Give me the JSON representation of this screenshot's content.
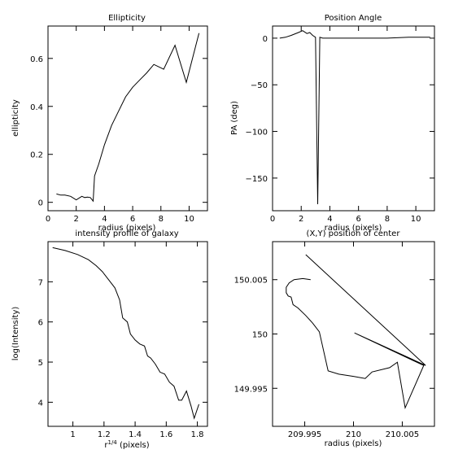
{
  "chart_data": [
    {
      "id": "ellipticity",
      "type": "line",
      "title": "Ellipticity",
      "xlabel": "radius (pixels)",
      "ylabel": "ellipticity",
      "xlim": [
        0,
        11.3
      ],
      "ylim": [
        -0.035,
        0.735
      ],
      "xticks": [
        0,
        2,
        4,
        6,
        8,
        10
      ],
      "xtick_labels": [
        "0",
        "2",
        "4",
        "6",
        "8",
        "10"
      ],
      "yticks": [
        0,
        0.2,
        0.4,
        0.6
      ],
      "ytick_labels": [
        "0",
        "0.2",
        "0.4",
        "0.6"
      ],
      "grid": false,
      "series": [
        {
          "x": [
            0.6,
            0.9,
            1.2,
            1.6,
            2.0,
            2.4,
            2.6,
            2.8,
            3.0,
            3.2,
            3.3,
            3.6,
            4.0,
            4.5,
            5.0,
            5.5,
            6.0,
            6.5,
            7.0,
            7.5,
            8.2,
            9.0,
            9.8,
            10.7
          ],
          "y": [
            0.035,
            0.03,
            0.03,
            0.025,
            0.01,
            0.025,
            0.02,
            0.022,
            0.02,
            0.005,
            0.11,
            0.16,
            0.24,
            0.32,
            0.38,
            0.44,
            0.48,
            0.51,
            0.54,
            0.575,
            0.555,
            0.655,
            0.5,
            0.705
          ]
        }
      ]
    },
    {
      "id": "position-angle",
      "type": "line",
      "title": "Position Angle",
      "xlabel": "radius (pixels)",
      "ylabel": "PA (deg)",
      "xlim": [
        0,
        11.3
      ],
      "ylim": [
        -185,
        13
      ],
      "xticks": [
        0,
        2,
        4,
        6,
        8,
        10
      ],
      "xtick_labels": [
        "0",
        "2",
        "4",
        "6",
        "8",
        "10"
      ],
      "yticks": [
        0,
        -50,
        -100,
        -150
      ],
      "ytick_labels": [
        "0",
        "−50",
        "−100",
        "−150"
      ],
      "grid": false,
      "series": [
        {
          "x": [
            0.5,
            0.9,
            1.3,
            1.8,
            2.1,
            2.4,
            2.6,
            2.8,
            3.0,
            3.15,
            3.3,
            3.5,
            4.5,
            6,
            8,
            9.5,
            11
          ],
          "y": [
            0,
            1,
            3,
            6,
            8,
            5,
            6,
            3,
            1,
            -178,
            1,
            0,
            0,
            0,
            0,
            1,
            1
          ]
        }
      ]
    },
    {
      "id": "intensity-profile",
      "type": "line",
      "title": "intensity profile of galaxy",
      "xlabel": "r^{1/4} (pixels)",
      "ylabel": "log(Intensity)",
      "xlim": [
        0.84,
        1.865
      ],
      "ylim": [
        3.4,
        8.0
      ],
      "xticks": [
        1,
        1.2,
        1.4,
        1.6,
        1.8
      ],
      "xtick_labels": [
        "1",
        "1.2",
        "1.4",
        "1.6",
        "1.8"
      ],
      "yticks": [
        4,
        5,
        6,
        7
      ],
      "ytick_labels": [
        "4",
        "5",
        "6",
        "7"
      ],
      "grid": false,
      "series": [
        {
          "x": [
            0.87,
            0.95,
            1.03,
            1.1,
            1.15,
            1.19,
            1.23,
            1.27,
            1.3,
            1.32,
            1.35,
            1.37,
            1.4,
            1.43,
            1.46,
            1.48,
            1.5,
            1.53,
            1.56,
            1.59,
            1.62,
            1.65,
            1.68,
            1.7,
            1.73,
            1.76,
            1.78,
            1.81
          ],
          "y": [
            7.85,
            7.78,
            7.68,
            7.55,
            7.4,
            7.25,
            7.05,
            6.85,
            6.55,
            6.1,
            6.0,
            5.7,
            5.55,
            5.45,
            5.4,
            5.15,
            5.1,
            4.95,
            4.75,
            4.7,
            4.5,
            4.4,
            4.05,
            4.05,
            4.28,
            3.9,
            3.6,
            3.95
          ]
        }
      ]
    },
    {
      "id": "center-position",
      "type": "line",
      "title": "(X,Y) position of center",
      "xlabel": "radius (pixels)",
      "ylabel": "",
      "xlim": [
        209.9917,
        210.0083
      ],
      "ylim": [
        149.9915,
        150.0085
      ],
      "xticks": [
        209.995,
        210,
        210.005
      ],
      "xtick_labels": [
        "209.995",
        "210",
        "210.005"
      ],
      "yticks": [
        149.995,
        150,
        150.005
      ],
      "ytick_labels": [
        "149.995",
        "150",
        "150.005"
      ],
      "grid": false,
      "series": [
        {
          "x": [
            209.9956,
            209.9948,
            209.9939,
            209.9934,
            209.9931,
            209.9931,
            209.9933,
            209.9936,
            209.9938,
            209.9943,
            209.9951,
            209.9958,
            209.9965,
            209.9974,
            209.9985,
            210.0,
            210.0012,
            210.0019,
            210.0037,
            210.0045,
            210.0053,
            210.0072,
            210.0001,
            210.0074,
            209.9951
          ],
          "y": [
            150.005,
            150.0051,
            150.005,
            150.0047,
            150.0043,
            150.0038,
            150.0035,
            150.0034,
            150.0027,
            150.0024,
            150.0017,
            150.001,
            150.0002,
            149.9966,
            149.9963,
            149.9961,
            149.9959,
            149.9965,
            149.9969,
            149.9974,
            149.9932,
            149.9971,
            150.0001,
            149.9971,
            150.0073
          ]
        }
      ]
    }
  ]
}
